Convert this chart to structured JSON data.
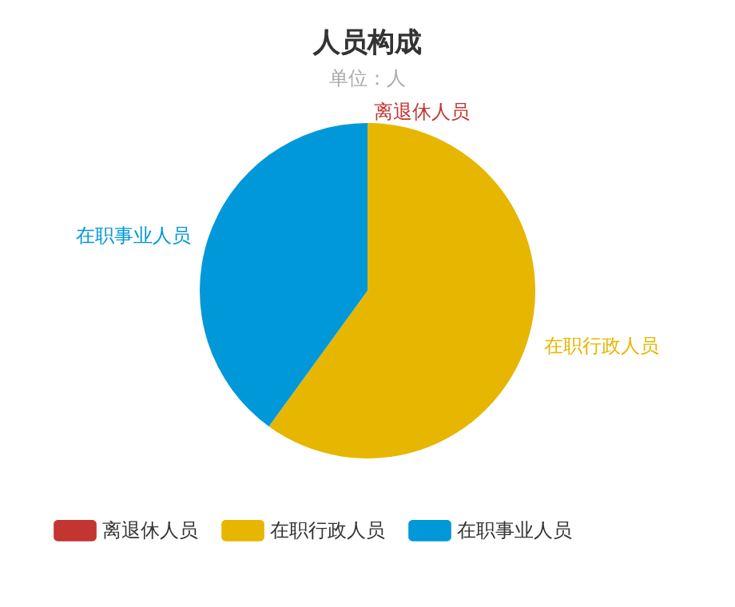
{
  "chart_data": {
    "type": "pie",
    "title": "人员构成",
    "subtitle": "单位：人",
    "categories": [
      "离退休人员",
      "在职行政人员",
      "在职事业人员"
    ],
    "values": [
      0,
      60,
      40
    ],
    "colors": [
      "#c23531",
      "#e6b600",
      "#0098d9"
    ],
    "legend": "bottom"
  }
}
